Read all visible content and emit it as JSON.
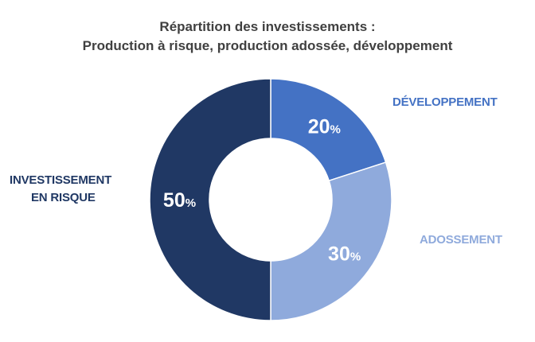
{
  "chart_data": {
    "type": "pie",
    "title_line1": "Répartition des investissements :",
    "title_line2": "Production à risque, production adossée, développement",
    "slices": [
      {
        "key": "developpement",
        "label_lines": [
          "DÉVELOPPEMENT"
        ],
        "value": 20,
        "pct_text": "20",
        "unit": "%",
        "color": "#4472C4",
        "label_color": "#4472C4"
      },
      {
        "key": "adossement",
        "label_lines": [
          "ADOSSEMENT"
        ],
        "value": 30,
        "pct_text": "30",
        "unit": "%",
        "color": "#8FAADC",
        "label_color": "#8FAADC"
      },
      {
        "key": "risque",
        "label_lines": [
          "INVESTISSEMENT",
          "EN RISQUE"
        ],
        "value": 50,
        "pct_text": "50",
        "unit": "%",
        "color": "#203864",
        "label_color": "#203864"
      }
    ],
    "donut": true,
    "start_angle": "top",
    "direction": "clockwise"
  }
}
